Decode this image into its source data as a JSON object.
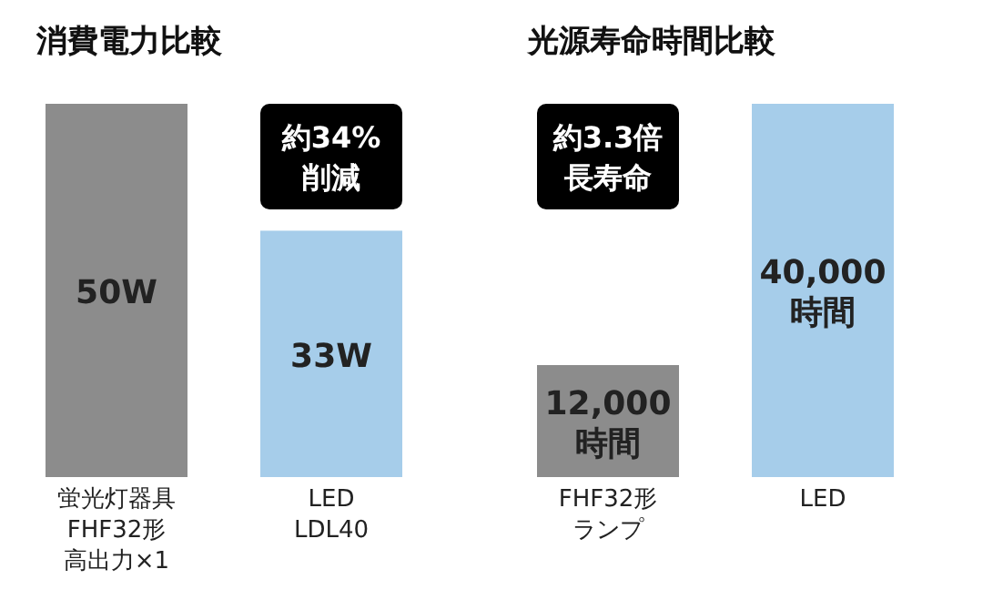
{
  "chart_data": [
    {
      "type": "bar",
      "title": "消費電力比較",
      "categories": [
        "蛍光灯器具FHF32形高出力×1",
        "LED\nLDL40"
      ],
      "values": [
        50,
        33
      ],
      "colors": [
        "#8c8c8c",
        "#a6cdea"
      ],
      "value_labels": [
        "50W",
        "33W"
      ],
      "annotations": [
        "約34%削減"
      ]
    },
    {
      "type": "bar",
      "title": "光源寿命時間比較",
      "categories": [
        "FHF32形ランプ",
        "LED"
      ],
      "values": [
        12000,
        40000
      ],
      "colors": [
        "#8c8c8c",
        "#a6cdea"
      ],
      "value_labels": [
        "12,000時間",
        "40,000時間"
      ],
      "annotations": [
        "約3.3倍長寿命"
      ]
    }
  ]
}
